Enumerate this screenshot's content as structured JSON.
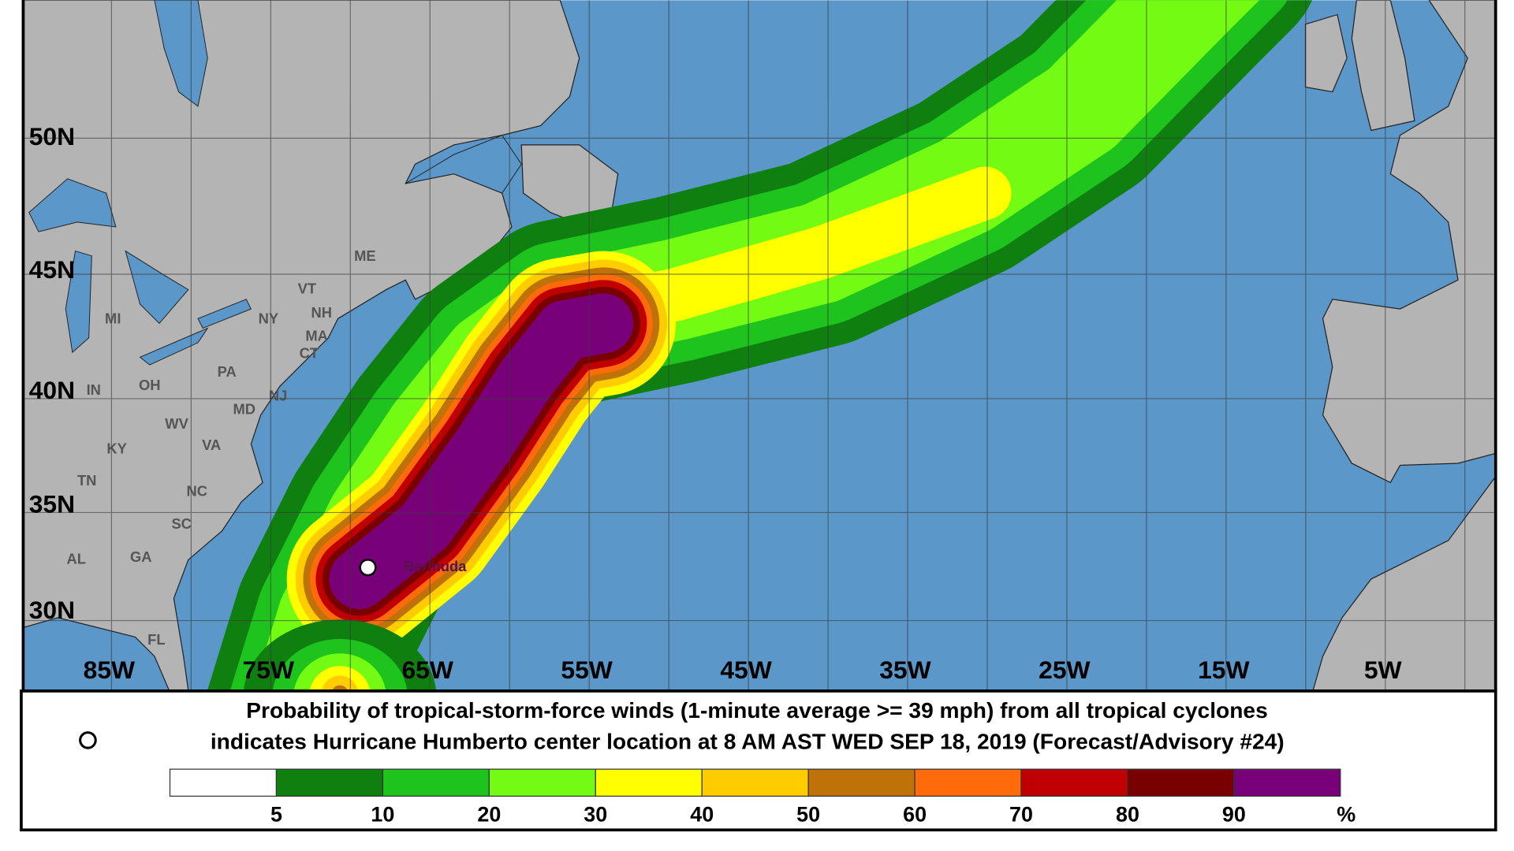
{
  "map": {
    "lat_labels": [
      "50N",
      "45N",
      "40N",
      "35N",
      "30N"
    ],
    "lon_labels": [
      "85W",
      "75W",
      "65W",
      "55W",
      "45W",
      "35W",
      "25W",
      "15W",
      "5W"
    ],
    "state_labels": [
      "ME",
      "VT",
      "NH",
      "MA",
      "CT",
      "NY",
      "MI",
      "PA",
      "OH",
      "IN",
      "WV",
      "VA",
      "MD",
      "NJ",
      "KY",
      "TN",
      "NC",
      "SC",
      "GA",
      "AL",
      "FL"
    ],
    "place_label": "Bermuda",
    "storm_marker": "open-circle-icon",
    "colors": {
      "ocean": "#5b97c9",
      "land": "#b4b4b4",
      "grid": "#3a3a3a"
    }
  },
  "caption": {
    "line1": "Probability of tropical-storm-force winds (1-minute average >= 39 mph) from all tropical cyclones",
    "line2": "indicates Hurricane Humberto center location at 8 AM AST WED SEP 18, 2019 (Forecast/Advisory #24)"
  },
  "legend": {
    "labels": [
      "5",
      "10",
      "20",
      "30",
      "40",
      "50",
      "60",
      "70",
      "80",
      "90",
      "%"
    ],
    "colors": [
      "#ffffff",
      "#0f7f0f",
      "#1ec31e",
      "#73fb14",
      "#ffff00",
      "#ffcc00",
      "#bf7207",
      "#ff6a0a",
      "#c00000",
      "#780000",
      "#780078"
    ]
  }
}
